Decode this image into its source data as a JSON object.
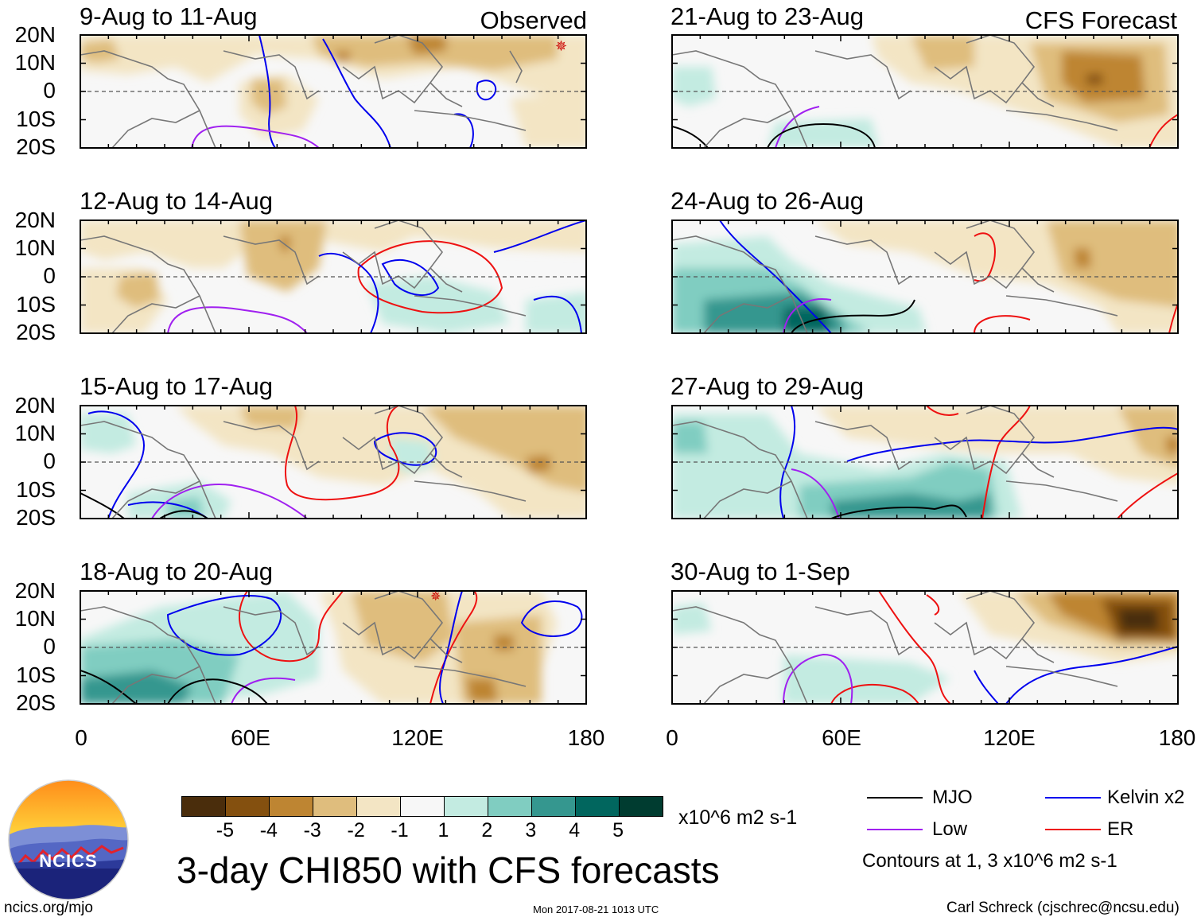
{
  "panels_left": [
    {
      "title": "9-Aug to 11-Aug",
      "tag": "Observed"
    },
    {
      "title": "12-Aug to 14-Aug",
      "tag": ""
    },
    {
      "title": "15-Aug to 17-Aug",
      "tag": ""
    },
    {
      "title": "18-Aug to 20-Aug",
      "tag": ""
    }
  ],
  "panels_right": [
    {
      "title": "21-Aug to 23-Aug",
      "tag": "CFS Forecast"
    },
    {
      "title": "24-Aug to 26-Aug",
      "tag": ""
    },
    {
      "title": "27-Aug to 29-Aug",
      "tag": ""
    },
    {
      "title": "30-Aug to 1-Sep",
      "tag": ""
    }
  ],
  "lat_labels": [
    "20N",
    "10N",
    "0",
    "10S",
    "20S"
  ],
  "lon_labels": [
    "0",
    "60E",
    "120E",
    "180"
  ],
  "colorbar": {
    "labels": [
      "-5",
      "-4",
      "-3",
      "-2",
      "-1",
      "1",
      "2",
      "3",
      "4",
      "5"
    ],
    "colors": [
      "#4a2d0c",
      "#84500f",
      "#be8532",
      "#dfbd7d",
      "#f3e5c4",
      "#f7f7f7",
      "#c3ebe1",
      "#80cdc1",
      "#35978f",
      "#01665e",
      "#003c30"
    ],
    "units": "x10^6 m2 s-1"
  },
  "legend": {
    "items": [
      {
        "label": "MJO",
        "color": "#000000"
      },
      {
        "label": "Kelvin x2",
        "color": "#0000ff"
      },
      {
        "label": "Low",
        "color": "#a020f0"
      },
      {
        "label": "ER",
        "color": "#ee1111"
      }
    ],
    "note": "Contours at 1, 3 x10^6 m2 s-1"
  },
  "main_title": "3-day CHI850 with CFS forecasts",
  "logo_text": "NCICS",
  "footer": {
    "url": "ncics.org/mjo",
    "timestamp": "Mon 2017-08-21 1013 UTC",
    "author": "Carl Schreck (cjschrec@ncsu.edu)"
  }
}
